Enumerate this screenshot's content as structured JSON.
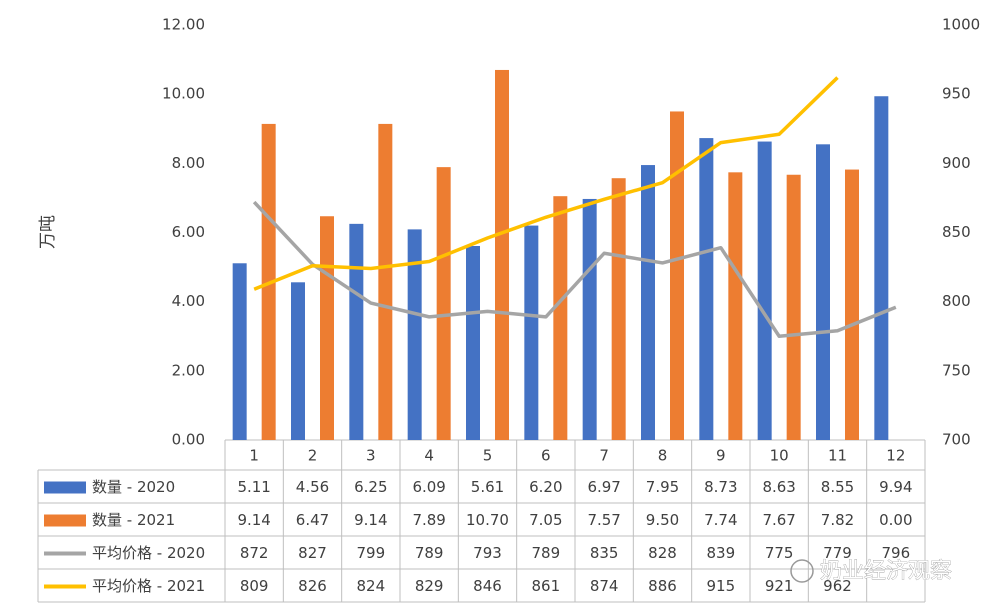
{
  "chart_data": {
    "type": "bar",
    "y_label": "万吨",
    "categories": [
      "1",
      "2",
      "3",
      "4",
      "5",
      "6",
      "7",
      "8",
      "9",
      "10",
      "11",
      "12"
    ],
    "series": [
      {
        "name": "数量 - 2020",
        "type": "bar",
        "color": "#4472c4",
        "values": [
          5.11,
          4.56,
          6.25,
          6.09,
          5.61,
          6.2,
          6.97,
          7.95,
          8.73,
          8.63,
          8.55,
          9.94
        ],
        "value_labels": [
          "5.11",
          "4.56",
          "6.25",
          "6.09",
          "5.61",
          "6.20",
          "6.97",
          "7.95",
          "8.73",
          "8.63",
          "8.55",
          "9.94"
        ]
      },
      {
        "name": "数量 - 2021",
        "type": "bar",
        "color": "#ed7d31",
        "values": [
          9.14,
          6.47,
          9.14,
          7.89,
          10.7,
          7.05,
          7.57,
          9.5,
          7.74,
          7.67,
          7.82,
          0.0
        ],
        "value_labels": [
          "9.14",
          "6.47",
          "9.14",
          "7.89",
          "10.70",
          "7.05",
          "7.57",
          "9.50",
          "7.74",
          "7.67",
          "7.82",
          "0.00"
        ]
      },
      {
        "name": "平均价格 - 2020",
        "type": "line",
        "axis": "y2",
        "color": "#a5a5a5",
        "values": [
          872,
          827,
          799,
          789,
          793,
          789,
          835,
          828,
          839,
          775,
          779,
          796
        ]
      },
      {
        "name": "平均价格 - 2021",
        "type": "line",
        "axis": "y2",
        "color": "#ffc000",
        "values": [
          809,
          826,
          824,
          829,
          846,
          861,
          874,
          886,
          915,
          921,
          962,
          null
        ]
      }
    ],
    "ylim": [
      0,
      12
    ],
    "yticks": [
      {
        "value": 0,
        "label": "0.00"
      },
      {
        "value": 2,
        "label": "2.00"
      },
      {
        "value": 4,
        "label": "4.00"
      },
      {
        "value": 6,
        "label": "6.00"
      },
      {
        "value": 8,
        "label": "8.00"
      },
      {
        "value": 10,
        "label": "10.00"
      },
      {
        "value": 12,
        "label": "12.00"
      }
    ],
    "y2lim": [
      700,
      1000
    ],
    "y2ticks": [
      700,
      750,
      800,
      850,
      900,
      950,
      1000
    ],
    "grid": false,
    "watermark": "奶业经济观察"
  }
}
